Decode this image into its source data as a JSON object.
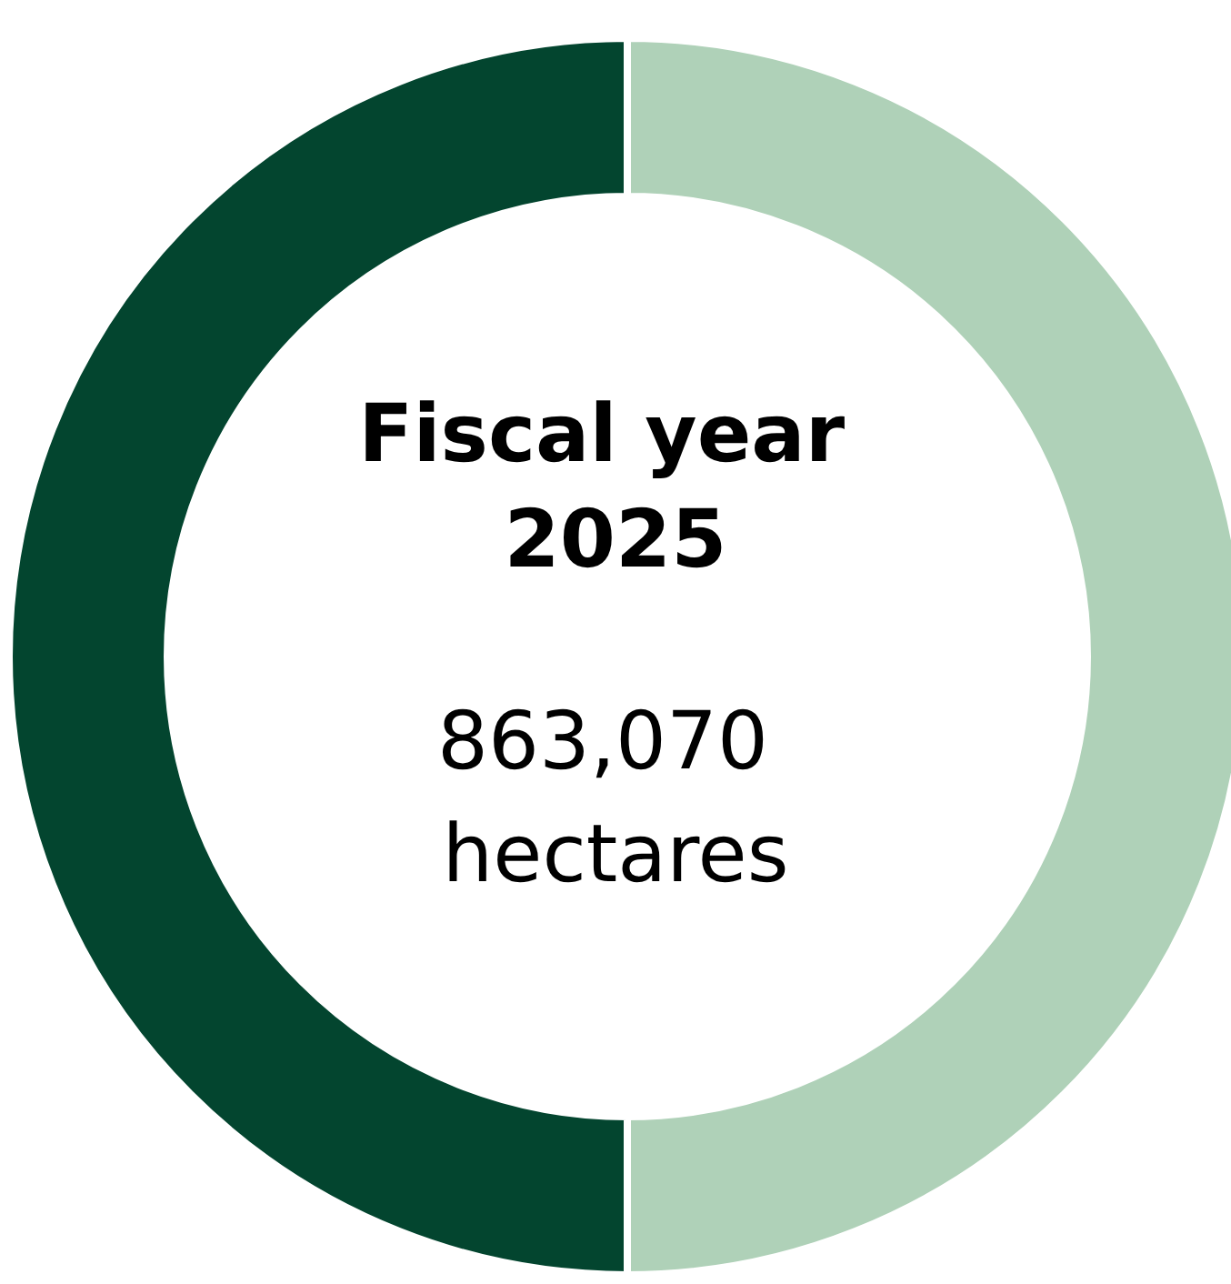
{
  "chart_data": {
    "type": "donut",
    "title": "Fiscal year 2025",
    "subtitle": "863,070 hectares",
    "categories": [
      null,
      null
    ],
    "values": [
      50,
      50
    ],
    "colors": [
      "#afd1b8",
      "#03452f"
    ]
  }
}
